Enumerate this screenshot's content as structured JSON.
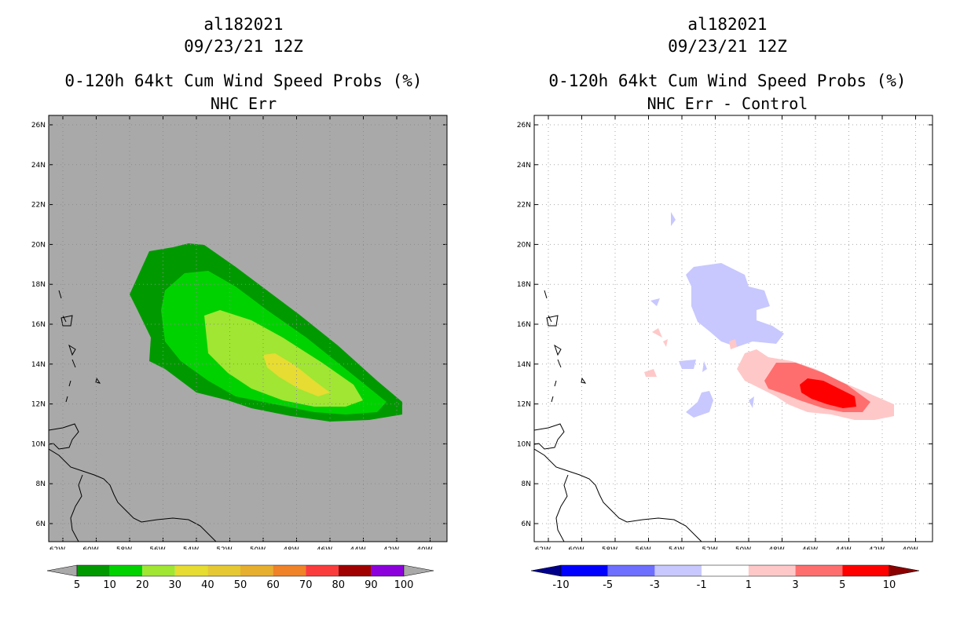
{
  "panels": [
    {
      "storm_id": "al182021",
      "datetime": "09/23/21 12Z",
      "product": "0-120h 64kt Cum Wind Speed Probs (%)",
      "subtitle": "NHC Err",
      "background_color": "#a9a9a9",
      "lat_labels": [
        "26N",
        "24N",
        "22N",
        "20N",
        "18N",
        "16N",
        "14N",
        "12N",
        "10N",
        "8N",
        "6N"
      ],
      "lon_labels": [
        "62W",
        "60W",
        "58W",
        "56W",
        "54W",
        "52W",
        "50W",
        "48W",
        "46W",
        "44W",
        "42W",
        "40W"
      ],
      "colorbar": {
        "colors": [
          "#009a00",
          "#00d200",
          "#a0e632",
          "#e6dc32",
          "#e6c832",
          "#e6af2d",
          "#f08228",
          "#fa3c3c",
          "#a00000",
          "#8c00dc"
        ],
        "under_color": "#a9a9a9",
        "over_color": "#a9a9a9",
        "labels": [
          "5",
          "10",
          "20",
          "30",
          "40",
          "50",
          "60",
          "70",
          "80",
          "90",
          "100"
        ]
      }
    },
    {
      "storm_id": "al182021",
      "datetime": "09/23/21 12Z",
      "product": "0-120h 64kt Cum Wind Speed Probs (%)",
      "subtitle": "NHC Err - Control",
      "background_color": "#ffffff",
      "lat_labels": [
        "26N",
        "24N",
        "22N",
        "20N",
        "18N",
        "16N",
        "14N",
        "12N",
        "10N",
        "8N",
        "6N"
      ],
      "lon_labels": [
        "62W",
        "60W",
        "58W",
        "56W",
        "54W",
        "52W",
        "50W",
        "48W",
        "46W",
        "44W",
        "42W",
        "40W"
      ],
      "colorbar": {
        "colors": [
          "#0000ff",
          "#6e6eff",
          "#c8c8ff",
          "#ffffff",
          "#ffc8c8",
          "#ff6e6e",
          "#ff0000"
        ],
        "under_color": "#00008b",
        "over_color": "#8b0000",
        "labels": [
          "-10",
          "-5",
          "-3",
          "-1",
          "1",
          "3",
          "5",
          "10"
        ]
      }
    }
  ]
}
